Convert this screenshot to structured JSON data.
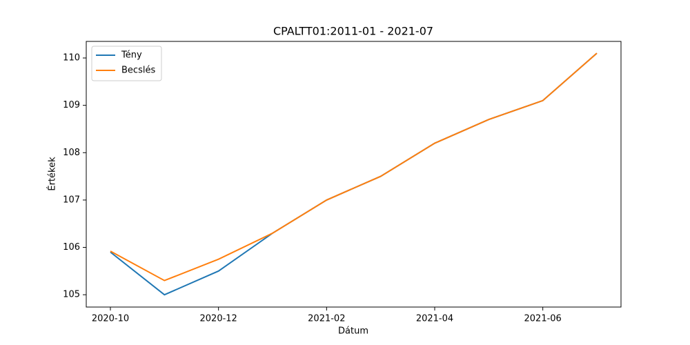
{
  "chart_data": {
    "type": "line",
    "title": "CPALTT01:2011-01 - 2021-07",
    "x_label": "Dátum",
    "y_label": "Értékek",
    "categories": [
      "2020-10",
      null,
      "2020-12",
      null,
      "2021-02",
      null,
      "2021-04",
      null,
      "2021-06",
      null
    ],
    "series": [
      {
        "name": "Tény",
        "color": "#1f77b4",
        "values": [
          105.9,
          105.0,
          105.5,
          106.3,
          107.0,
          107.5,
          108.2,
          108.7,
          109.1,
          110.1
        ]
      },
      {
        "name": "Becslés",
        "color": "#ff7f0e",
        "values": [
          105.92,
          105.3,
          105.75,
          106.3,
          107.0,
          107.5,
          108.2,
          108.7,
          109.1,
          110.1
        ]
      }
    ],
    "ylim": [
      104.74,
      110.35
    ],
    "yticks": [
      105,
      106,
      107,
      108,
      109,
      110
    ],
    "legend": "upper left"
  }
}
